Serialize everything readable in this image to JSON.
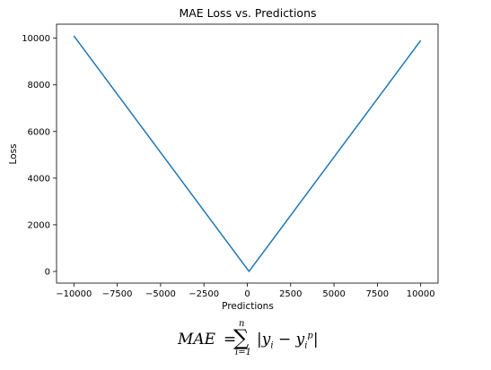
{
  "chart_data": {
    "type": "line",
    "title": "MAE Loss vs. Predictions",
    "xlabel": "Predictions",
    "ylabel": "Loss",
    "xlim": [
      -11000,
      11000
    ],
    "ylim": [
      -500,
      10600
    ],
    "xticks": [
      -10000,
      -7500,
      -5000,
      -2500,
      0,
      2500,
      5000,
      7500,
      10000
    ],
    "xtick_labels": [
      "−10000",
      "−7500",
      "−5000",
      "−2500",
      "0",
      "2500",
      "5000",
      "7500",
      "10000"
    ],
    "yticks": [
      0,
      2000,
      4000,
      6000,
      8000,
      10000
    ],
    "ytick_labels": [
      "0",
      "2000",
      "4000",
      "6000",
      "8000",
      "10000"
    ],
    "grid": false,
    "series": [
      {
        "color": "#1f77b4",
        "x": [
          -10000,
          100,
          10000
        ],
        "y": [
          10100,
          0,
          9900
        ]
      }
    ]
  },
  "formula": {
    "lhs": "MAE",
    "eq": "=",
    "sigma": "∑",
    "upper": "n",
    "lower": "i=1",
    "body_open": "|y",
    "body_sub1": "i",
    "body_mid": " − y",
    "body_sub2": "i",
    "body_sup2": "p",
    "body_close": "|"
  }
}
